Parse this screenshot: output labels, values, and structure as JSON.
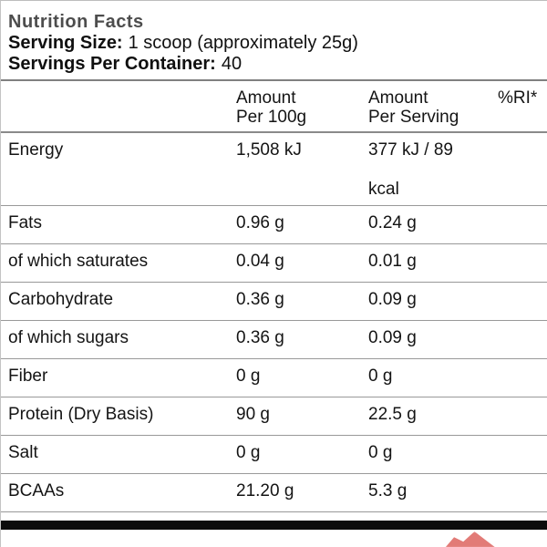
{
  "label": {
    "title": "Nutrition Facts",
    "serving_size": {
      "label": "Serving Size:",
      "value": "1 scoop (approximately 25g)"
    },
    "servings_per_container": {
      "label": "Servings Per Container:",
      "value": "40"
    }
  },
  "table": {
    "columns": [
      {
        "line1": "",
        "line2": ""
      },
      {
        "line1": "Amount",
        "line2": "Per 100g"
      },
      {
        "line1": "Amount",
        "line2": "Per Serving"
      },
      {
        "line1": "%RI*",
        "line2": ""
      }
    ],
    "rows": [
      {
        "label": "Energy",
        "per_100g": "1,508 kJ",
        "per_serving": "377 kJ / 89",
        "per_serving_line2": "kcal",
        "ri": ""
      },
      {
        "label": "Fats",
        "per_100g": "0.96 g",
        "per_serving": "0.24 g",
        "ri": ""
      },
      {
        "label": "of which saturates",
        "per_100g": "0.04 g",
        "per_serving": "0.01 g",
        "ri": ""
      },
      {
        "label": "Carbohydrate",
        "per_100g": "0.36 g",
        "per_serving": "0.09 g",
        "ri": ""
      },
      {
        "label": "of which sugars",
        "per_100g": "0.36 g",
        "per_serving": "0.09 g",
        "ri": ""
      },
      {
        "label": "Fiber",
        "per_100g": "0 g",
        "per_serving": "0 g",
        "ri": ""
      },
      {
        "label": "Protein (Dry Basis)",
        "per_100g": "90 g",
        "per_serving": "22.5 g",
        "ri": ""
      },
      {
        "label": "Salt",
        "per_100g": "0 g",
        "per_serving": "0 g",
        "ri": ""
      },
      {
        "label": "BCAAs",
        "per_100g": "21.20 g",
        "per_serving": "5.3 g",
        "ri": ""
      }
    ]
  },
  "colors": {
    "title_text": "#4d4d4d",
    "body_text": "#141414",
    "row_line": "#999999",
    "section_line": "#808080",
    "bottom_bar": "#0c0c0c",
    "watermark_red": "#d94f4a"
  }
}
